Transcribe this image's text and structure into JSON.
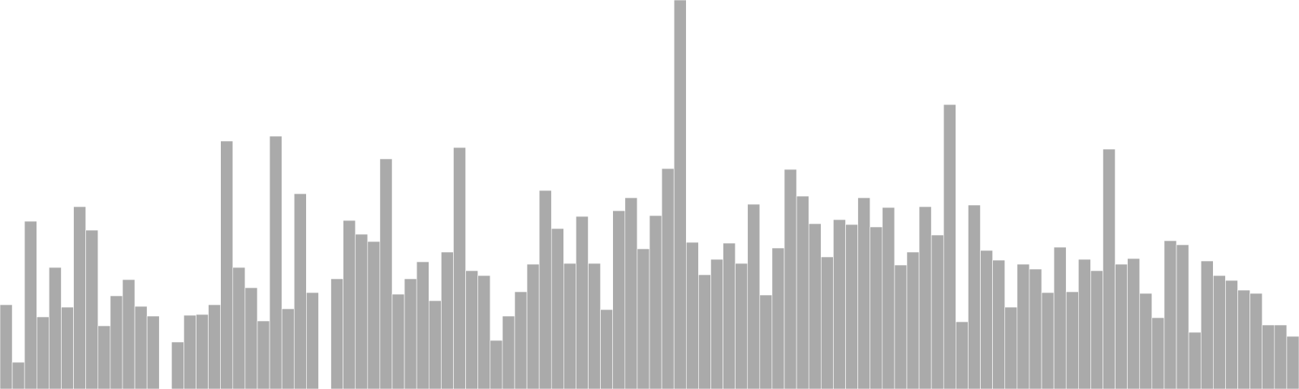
{
  "chart_data": {
    "type": "bar",
    "bar_color": "#aaaaaa",
    "bar_edge_color": "#ffffff",
    "grid": false,
    "axes_visible": false,
    "ylim": [
      0,
      480
    ],
    "values": [
      104,
      33,
      207,
      89,
      150,
      101,
      225,
      196,
      78,
      115,
      135,
      102,
      90,
      null,
      58,
      91,
      92,
      104,
      306,
      150,
      125,
      84,
      312,
      99,
      241,
      119,
      null,
      136,
      208,
      191,
      182,
      284,
      117,
      136,
      157,
      109,
      169,
      298,
      146,
      140,
      60,
      90,
      120,
      154,
      245,
      198,
      155,
      213,
      155,
      98,
      220,
      236,
      173,
      214,
      272,
      480,
      181,
      141,
      160,
      180,
      155,
      228,
      116,
      174,
      271,
      238,
      204,
      163,
      209,
      203,
      236,
      200,
      224,
      153,
      169,
      225,
      190,
      351,
      83,
      227,
      171,
      159,
      101,
      154,
      148,
      119,
      175,
      120,
      160,
      146,
      296,
      154,
      161,
      118,
      88,
      183,
      178,
      70,
      158,
      140,
      134,
      122,
      118,
      79,
      79,
      65
    ]
  }
}
